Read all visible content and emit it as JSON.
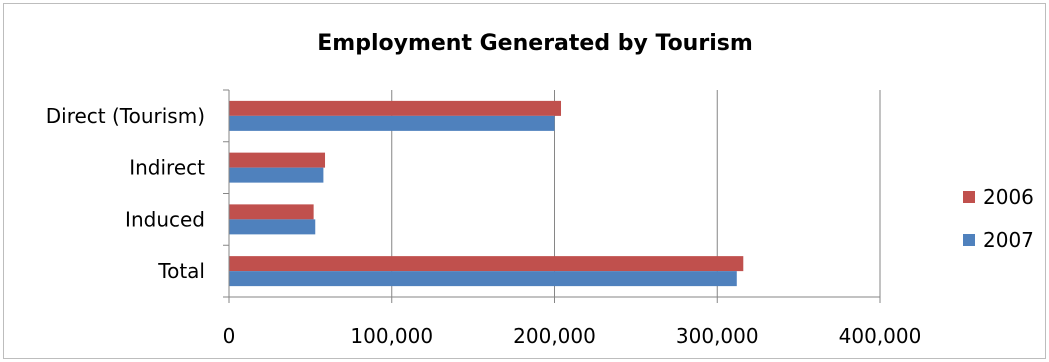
{
  "chart_data": {
    "type": "bar",
    "orientation": "horizontal",
    "title": "Employment Generated by Tourism",
    "categories": [
      "Direct (Tourism)",
      "Indirect",
      "Induced",
      "Total"
    ],
    "series": [
      {
        "name": "2006",
        "color": "#c0504d",
        "values": [
          204000,
          59000,
          52000,
          316000
        ]
      },
      {
        "name": "2007",
        "color": "#4f81bd",
        "values": [
          200000,
          58000,
          53000,
          312000
        ]
      }
    ],
    "xlim": [
      0,
      400000
    ],
    "x_ticks": [
      0,
      100000,
      200000,
      300000,
      400000
    ],
    "x_tick_labels": [
      "0",
      "100,000",
      "200,000",
      "300,000",
      "400,000"
    ],
    "xlabel": "",
    "ylabel": "",
    "grid": true,
    "legend_position": "right"
  }
}
